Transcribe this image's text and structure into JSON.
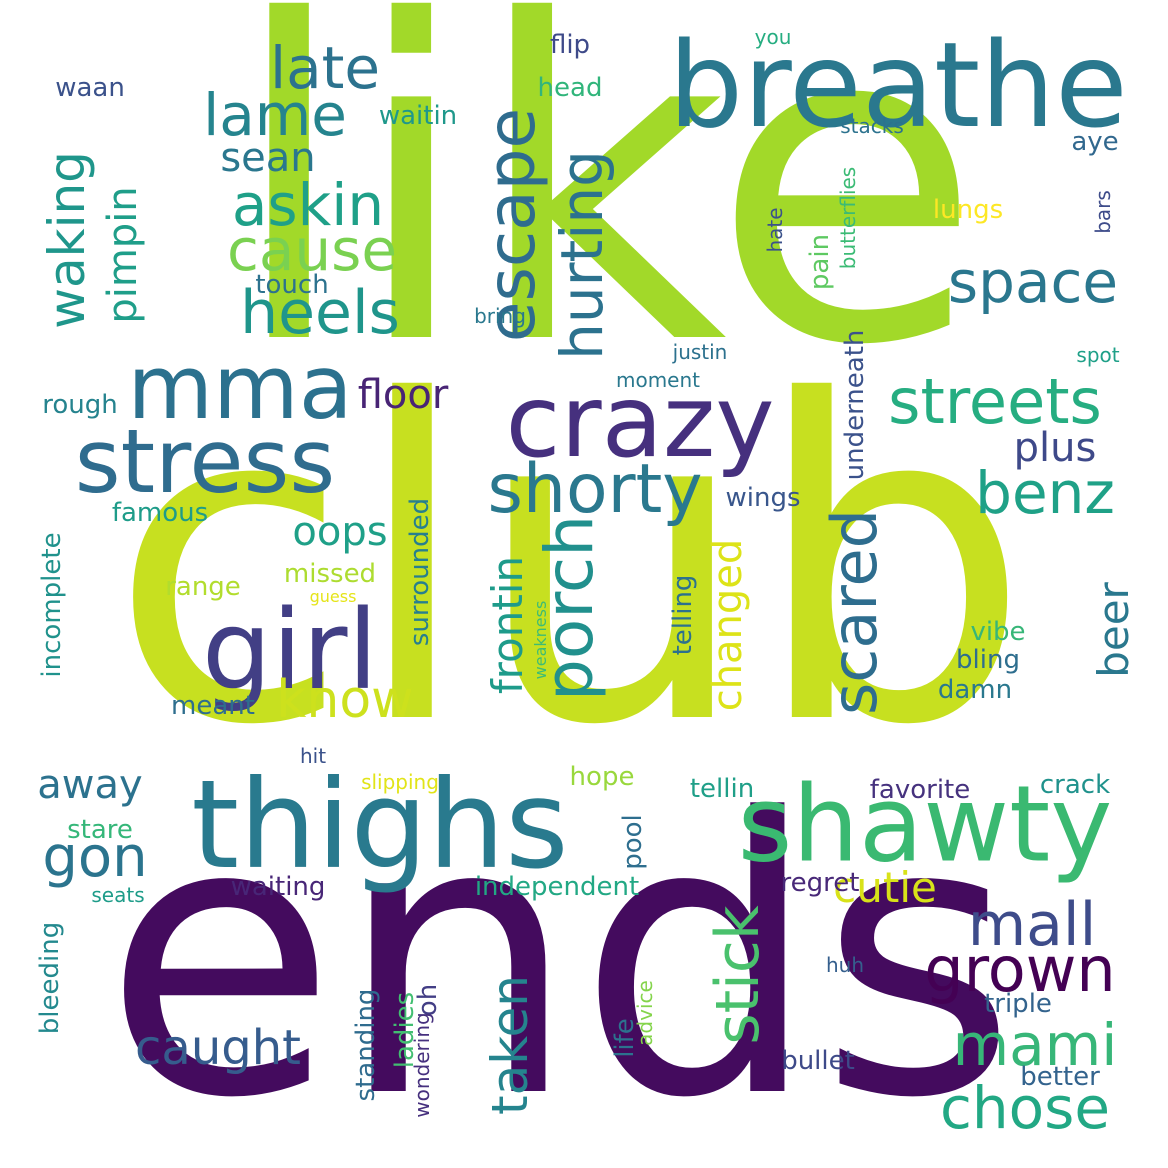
{
  "words": [
    {
      "text": "like",
      "color": "#a2d929"
    },
    {
      "text": "club",
      "color": "#c7e020"
    },
    {
      "text": "ends",
      "color": "#440b5e"
    },
    {
      "text": "breathe",
      "color": "#2a788e"
    },
    {
      "text": "thighs",
      "color": "#297a8e"
    },
    {
      "text": "shawty",
      "color": "#3ab971"
    },
    {
      "text": "girl",
      "color": "#423f85"
    },
    {
      "text": "crazy",
      "color": "#46307e"
    },
    {
      "text": "stress",
      "color": "#2f6c8e"
    },
    {
      "text": "mma",
      "color": "#2c718e"
    },
    {
      "text": "escape",
      "color": "#2f6c8e"
    },
    {
      "text": "hurting",
      "color": "#2c728e"
    },
    {
      "text": "shorty",
      "color": "#2a788e"
    },
    {
      "text": "porch",
      "color": "#21908d"
    },
    {
      "text": "scared",
      "color": "#2e6d8e"
    },
    {
      "text": "space",
      "color": "#2a778e"
    },
    {
      "text": "streets",
      "color": "#26ad81"
    },
    {
      "text": "benz",
      "color": "#1fa187"
    },
    {
      "text": "mall",
      "color": "#3e4c8a"
    },
    {
      "text": "grown",
      "color": "#440154"
    },
    {
      "text": "mami",
      "color": "#37b678"
    },
    {
      "text": "chose",
      "color": "#22a884"
    },
    {
      "text": "stick",
      "color": "#4ac16d"
    },
    {
      "text": "cutie",
      "color": "#d8e219"
    },
    {
      "text": "gon",
      "color": "#2b748e"
    },
    {
      "text": "caught",
      "color": "#365c8d"
    },
    {
      "text": "taken",
      "color": "#25848e"
    },
    {
      "text": "know",
      "color": "#cde11d"
    },
    {
      "text": "heels",
      "color": "#1f958b"
    },
    {
      "text": "cause",
      "color": "#7ad151"
    },
    {
      "text": "askin",
      "color": "#1fa088"
    },
    {
      "text": "lame",
      "color": "#25848e"
    },
    {
      "text": "late",
      "color": "#2c728e"
    },
    {
      "text": "sean",
      "color": "#2a778e"
    },
    {
      "text": "waking",
      "color": "#1f968b"
    },
    {
      "text": "pimpin",
      "color": "#1f9e89"
    },
    {
      "text": "floor",
      "color": "#482475"
    },
    {
      "text": "plus",
      "color": "#3e4989"
    },
    {
      "text": "oops",
      "color": "#1fa088"
    },
    {
      "text": "frontin",
      "color": "#1e9b8a"
    },
    {
      "text": "changed",
      "color": "#dde318"
    },
    {
      "text": "beer",
      "color": "#2a788e"
    },
    {
      "text": "away",
      "color": "#2c728e"
    },
    {
      "text": "touch",
      "color": "#2c728e"
    },
    {
      "text": "flip",
      "color": "#3e4a89"
    },
    {
      "text": "head",
      "color": "#31b57b"
    },
    {
      "text": "waitin",
      "color": "#1f988b"
    },
    {
      "text": "waan",
      "color": "#3b528b"
    },
    {
      "text": "you",
      "color": "#26ad81"
    },
    {
      "text": "aye",
      "color": "#31688e"
    },
    {
      "text": "stacks",
      "color": "#2c728e"
    },
    {
      "text": "lungs",
      "color": "#fde725"
    },
    {
      "text": "butterflies",
      "color": "#3bbb75"
    },
    {
      "text": "bars",
      "color": "#3e4c8a"
    },
    {
      "text": "hate",
      "color": "#3b528b"
    },
    {
      "text": "pain",
      "color": "#5ec962"
    },
    {
      "text": "bring",
      "color": "#2a788e"
    },
    {
      "text": "justin",
      "color": "#2c718e"
    },
    {
      "text": "spot",
      "color": "#1fa088"
    },
    {
      "text": "moment",
      "color": "#2a788e"
    },
    {
      "text": "underneath",
      "color": "#3b528b"
    },
    {
      "text": "rough",
      "color": "#25838e"
    },
    {
      "text": "famous",
      "color": "#1e9c89"
    },
    {
      "text": "incomplete",
      "color": "#20928c"
    },
    {
      "text": "surrounded",
      "color": "#277f8e"
    },
    {
      "text": "wings",
      "color": "#39568c"
    },
    {
      "text": "missed",
      "color": "#addc30"
    },
    {
      "text": "range",
      "color": "#b2dd2d"
    },
    {
      "text": "guess",
      "color": "#e5e419"
    },
    {
      "text": "weakness",
      "color": "#3dbc74"
    },
    {
      "text": "telling",
      "color": "#2c718e"
    },
    {
      "text": "vibe",
      "color": "#37b678"
    },
    {
      "text": "bling",
      "color": "#2e6e8e"
    },
    {
      "text": "damn",
      "color": "#2a788e"
    },
    {
      "text": "meant",
      "color": "#2e6e8e"
    },
    {
      "text": "hit",
      "color": "#3b528b"
    },
    {
      "text": "slipping",
      "color": "#e1e418"
    },
    {
      "text": "hope",
      "color": "#99d83d"
    },
    {
      "text": "tellin",
      "color": "#1f9f88"
    },
    {
      "text": "favorite",
      "color": "#46327e"
    },
    {
      "text": "crack",
      "color": "#20928c"
    },
    {
      "text": "stare",
      "color": "#35b779"
    },
    {
      "text": "pool",
      "color": "#2e6e8e"
    },
    {
      "text": "waiting",
      "color": "#482677"
    },
    {
      "text": "independent",
      "color": "#22a884"
    },
    {
      "text": "regret",
      "color": "#482878"
    },
    {
      "text": "seats",
      "color": "#1e9c89"
    },
    {
      "text": "bleeding",
      "color": "#23898e"
    },
    {
      "text": "huh",
      "color": "#355f8d"
    },
    {
      "text": "triple",
      "color": "#33638d"
    },
    {
      "text": "standing",
      "color": "#2f6b8e"
    },
    {
      "text": "ladies",
      "color": "#42be71"
    },
    {
      "text": "oh",
      "color": "#433e85"
    },
    {
      "text": "wondering",
      "color": "#46307e"
    },
    {
      "text": "life",
      "color": "#2c728e"
    },
    {
      "text": "advice",
      "color": "#84d44b"
    },
    {
      "text": "bullet",
      "color": "#3e4a89"
    },
    {
      "text": "better",
      "color": "#33638d"
    }
  ]
}
